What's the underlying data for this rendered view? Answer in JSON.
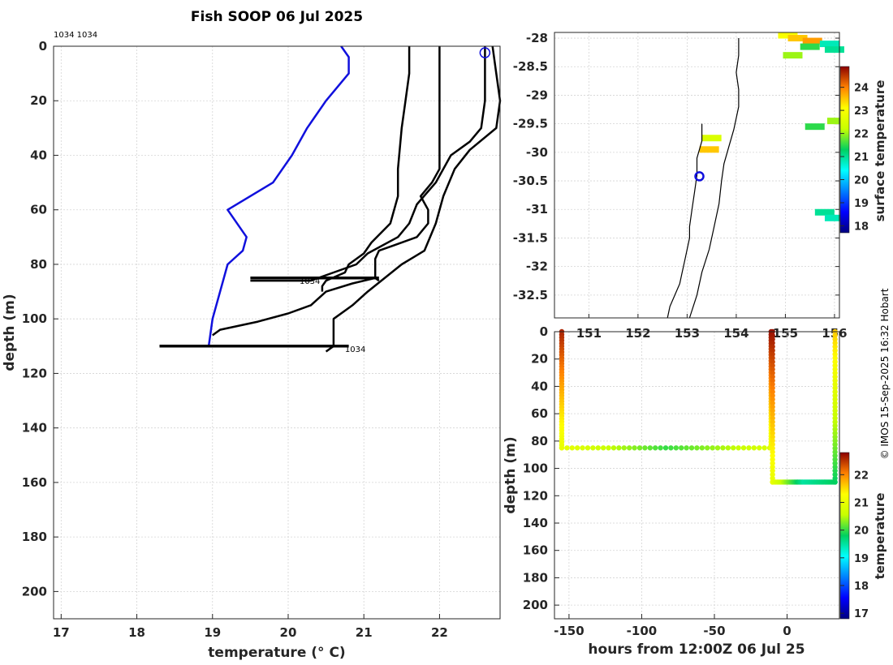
{
  "page_title": "Fish SOOP 06 Jul 2025",
  "top_note": "1034 1034",
  "credit": "© IMOS 15-Sep-2025 16:32 Hobart",
  "colors": {
    "blue_profile": "#1010dd",
    "black_profile": "#000000",
    "coast": "#000000"
  },
  "chart_data": [
    {
      "type": "line",
      "name": "profile-panel",
      "xlabel": "temperature (° C)",
      "ylabel": "depth (m)",
      "xlim": [
        16.9,
        22.8
      ],
      "ylim": [
        210,
        0
      ],
      "xticks": [
        17,
        18,
        19,
        20,
        21,
        22
      ],
      "yticks": [
        0,
        20,
        40,
        60,
        80,
        100,
        120,
        140,
        160,
        180,
        200
      ],
      "grid": true,
      "annotations": [
        {
          "text": "1034",
          "x": 20.15,
          "y": 86
        },
        {
          "text": "1034",
          "x": 20.75,
          "y": 111
        }
      ],
      "marker": {
        "name": "latest-position-circle",
        "x": 22.6,
        "y": 1.5
      },
      "series": [
        {
          "name": "latest-profile",
          "color": "#1010dd",
          "points": [
            [
              20.7,
              0
            ],
            [
              20.8,
              4
            ],
            [
              20.8,
              10
            ],
            [
              20.5,
              20
            ],
            [
              20.25,
              30
            ],
            [
              20.05,
              40
            ],
            [
              19.8,
              50
            ],
            [
              19.2,
              60
            ],
            [
              19.45,
              70
            ],
            [
              19.4,
              75
            ],
            [
              19.2,
              80
            ],
            [
              19.0,
              100
            ],
            [
              18.95,
              110
            ]
          ]
        },
        {
          "name": "profile-a",
          "color": "#000000",
          "points": [
            [
              21.6,
              0
            ],
            [
              21.6,
              10
            ],
            [
              21.55,
              20
            ],
            [
              21.5,
              30
            ],
            [
              21.45,
              45
            ],
            [
              21.45,
              55
            ],
            [
              21.35,
              65
            ],
            [
              21.1,
              72
            ],
            [
              21.0,
              76
            ],
            [
              20.8,
              80
            ],
            [
              20.75,
              83
            ],
            [
              20.5,
              86
            ],
            [
              20.45,
              88
            ],
            [
              20.45,
              90
            ]
          ]
        },
        {
          "name": "profile-b",
          "color": "#000000",
          "points": [
            [
              22.0,
              0
            ],
            [
              22.0,
              20
            ],
            [
              22.0,
              45
            ],
            [
              21.9,
              50
            ],
            [
              21.75,
              55
            ],
            [
              21.85,
              60
            ],
            [
              21.85,
              65
            ],
            [
              21.7,
              70
            ],
            [
              21.4,
              73
            ],
            [
              21.2,
              75
            ],
            [
              21.15,
              78
            ],
            [
              21.15,
              85
            ],
            [
              21.2,
              86
            ]
          ]
        },
        {
          "name": "profile-c",
          "color": "#000000",
          "points": [
            [
              22.6,
              0
            ],
            [
              22.6,
              20
            ],
            [
              22.55,
              30
            ],
            [
              22.4,
              35
            ],
            [
              22.15,
              40
            ],
            [
              21.95,
              50
            ],
            [
              21.7,
              58
            ],
            [
              21.6,
              65
            ],
            [
              21.45,
              70
            ],
            [
              21.05,
              76
            ],
            [
              20.9,
              80
            ],
            [
              20.6,
              83
            ],
            [
              20.3,
              86
            ],
            [
              19.5,
              86
            ]
          ]
        },
        {
          "name": "profile-d",
          "color": "#000000",
          "points": [
            [
              22.7,
              0
            ],
            [
              22.75,
              10
            ],
            [
              22.8,
              20
            ],
            [
              22.75,
              30
            ],
            [
              22.4,
              38
            ],
            [
              22.2,
              45
            ],
            [
              22.05,
              55
            ],
            [
              21.95,
              65
            ],
            [
              21.8,
              75
            ],
            [
              21.5,
              80
            ],
            [
              21.05,
              90
            ],
            [
              20.85,
              95
            ],
            [
              20.6,
              100
            ],
            [
              20.6,
              110
            ],
            [
              20.5,
              112
            ]
          ]
        },
        {
          "name": "profile-e",
          "color": "#000000",
          "points": [
            [
              19.0,
              106
            ],
            [
              19.1,
              104
            ],
            [
              19.6,
              101
            ],
            [
              20.0,
              98
            ],
            [
              20.3,
              95
            ],
            [
              20.5,
              90
            ],
            [
              20.85,
              87
            ],
            [
              21.15,
              85
            ]
          ]
        },
        {
          "name": "hold-85m",
          "color": "#000000",
          "points": [
            [
              19.5,
              85
            ],
            [
              21.2,
              85
            ]
          ]
        },
        {
          "name": "hold-110m",
          "color": "#000000",
          "points": [
            [
              18.3,
              110
            ],
            [
              20.8,
              110
            ]
          ]
        }
      ]
    },
    {
      "type": "heatmap",
      "name": "map-panel",
      "xlabel": "",
      "ylabel": "",
      "colorbar_label": "surface temperature",
      "colorbar_range": [
        17.7,
        24.9
      ],
      "colorbar_ticks": [
        18,
        19,
        20,
        21,
        22,
        23,
        24
      ],
      "xlim": [
        150.3,
        156.1
      ],
      "ylim": [
        -32.9,
        -27.9
      ],
      "xticks": [
        151,
        152,
        153,
        154,
        155,
        156
      ],
      "xticklabels": [
        "151",
        "152",
        "153",
        "154",
        "155",
        "156"
      ],
      "yticks": [
        -28,
        -28.5,
        -29,
        -29.5,
        -30,
        -30.5,
        -31,
        -31.5,
        -32,
        -32.5
      ],
      "yticklabels": [
        "-28",
        "-28.5",
        "-29",
        "-29.5",
        "-30",
        "-30.5",
        "-31",
        "-31.5",
        "-32",
        "-32.5"
      ],
      "grid": true,
      "vessel": {
        "lon": 153.25,
        "lat": -30.42
      },
      "sst_patches": [
        {
          "lon": 155.05,
          "lat": -27.95,
          "value": 23.0
        },
        {
          "lon": 155.25,
          "lat": -28.0,
          "value": 23.5
        },
        {
          "lon": 155.55,
          "lat": -28.05,
          "value": 23.8
        },
        {
          "lon": 155.15,
          "lat": -28.3,
          "value": 22.0
        },
        {
          "lon": 155.5,
          "lat": -28.15,
          "value": 21.5
        },
        {
          "lon": 155.9,
          "lat": -28.1,
          "value": 20.8
        },
        {
          "lon": 156.0,
          "lat": -28.2,
          "value": 21.0
        },
        {
          "lon": 155.6,
          "lat": -29.55,
          "value": 21.5
        },
        {
          "lon": 156.05,
          "lat": -29.45,
          "value": 22.0
        },
        {
          "lon": 153.5,
          "lat": -29.75,
          "value": 22.5
        },
        {
          "lon": 153.45,
          "lat": -29.95,
          "value": 23.5
        },
        {
          "lon": 155.8,
          "lat": -31.05,
          "value": 21.0
        },
        {
          "lon": 156.0,
          "lat": -31.15,
          "value": 20.8
        }
      ],
      "coastline": [
        [
          152.6,
          -32.9
        ],
        [
          152.65,
          -32.7
        ],
        [
          152.75,
          -32.5
        ],
        [
          152.85,
          -32.3
        ],
        [
          152.9,
          -32.1
        ],
        [
          152.95,
          -31.9
        ],
        [
          153.0,
          -31.7
        ],
        [
          153.05,
          -31.5
        ],
        [
          153.05,
          -31.3
        ],
        [
          153.1,
          -31.0
        ],
        [
          153.15,
          -30.7
        ],
        [
          153.2,
          -30.4
        ],
        [
          153.2,
          -30.1
        ],
        [
          153.3,
          -29.8
        ],
        [
          153.3,
          -29.5
        ]
      ],
      "shelf_edge": [
        [
          153.05,
          -32.9
        ],
        [
          153.2,
          -32.5
        ],
        [
          153.3,
          -32.1
        ],
        [
          153.45,
          -31.7
        ],
        [
          153.55,
          -31.3
        ],
        [
          153.65,
          -30.9
        ],
        [
          153.7,
          -30.5
        ],
        [
          153.75,
          -30.2
        ],
        [
          153.85,
          -29.9
        ],
        [
          153.95,
          -29.6
        ],
        [
          154.05,
          -29.2
        ],
        [
          154.05,
          -28.9
        ],
        [
          154.0,
          -28.6
        ],
        [
          154.05,
          -28.3
        ],
        [
          154.05,
          -28.0
        ]
      ]
    },
    {
      "type": "scatter",
      "name": "time-depth-panel",
      "xlabel": "hours from 12:00Z 06 Jul 25",
      "ylabel": "depth (m)",
      "colorbar_label": "temperature",
      "colorbar_range": [
        16.8,
        22.8
      ],
      "colorbar_ticks": [
        17,
        18,
        19,
        20,
        21,
        22
      ],
      "xlim": [
        -160,
        36
      ],
      "ylim": [
        210,
        0
      ],
      "xticks": [
        -150,
        -100,
        -50,
        0
      ],
      "yticks": [
        0,
        20,
        40,
        60,
        80,
        100,
        120,
        140,
        160,
        180,
        200
      ],
      "grid": true,
      "segments": [
        {
          "name": "descent-1",
          "x0": -155,
          "x1": -155,
          "d0": 0,
          "d1": 85,
          "t0": 22.6,
          "t1": 21.0
        },
        {
          "name": "hold-85m",
          "x0": -155,
          "x1": -12,
          "d0": 85,
          "d1": 85,
          "t0": 21.0,
          "t1": 20.0,
          "mid": 20.0,
          "end": 20.8
        },
        {
          "name": "ascent-1",
          "x0": -11,
          "x1": -11,
          "d0": 85,
          "d1": 0,
          "t0": 21.0,
          "t1": 22.7
        },
        {
          "name": "descent-2",
          "x0": -10,
          "x1": -10,
          "d0": 0,
          "d1": 110,
          "t0": 22.7,
          "t1": 21.0
        },
        {
          "name": "hold-110m",
          "x0": -10,
          "x1": 33,
          "d0": 110,
          "d1": 110,
          "t0": 21.0,
          "t1": 19.6,
          "mid": 19.5,
          "end": 19.8
        },
        {
          "name": "ascent-2",
          "x0": 33,
          "x1": 33,
          "d0": 110,
          "d1": 0,
          "t0": 19.8,
          "t1": 21.6
        }
      ]
    }
  ]
}
